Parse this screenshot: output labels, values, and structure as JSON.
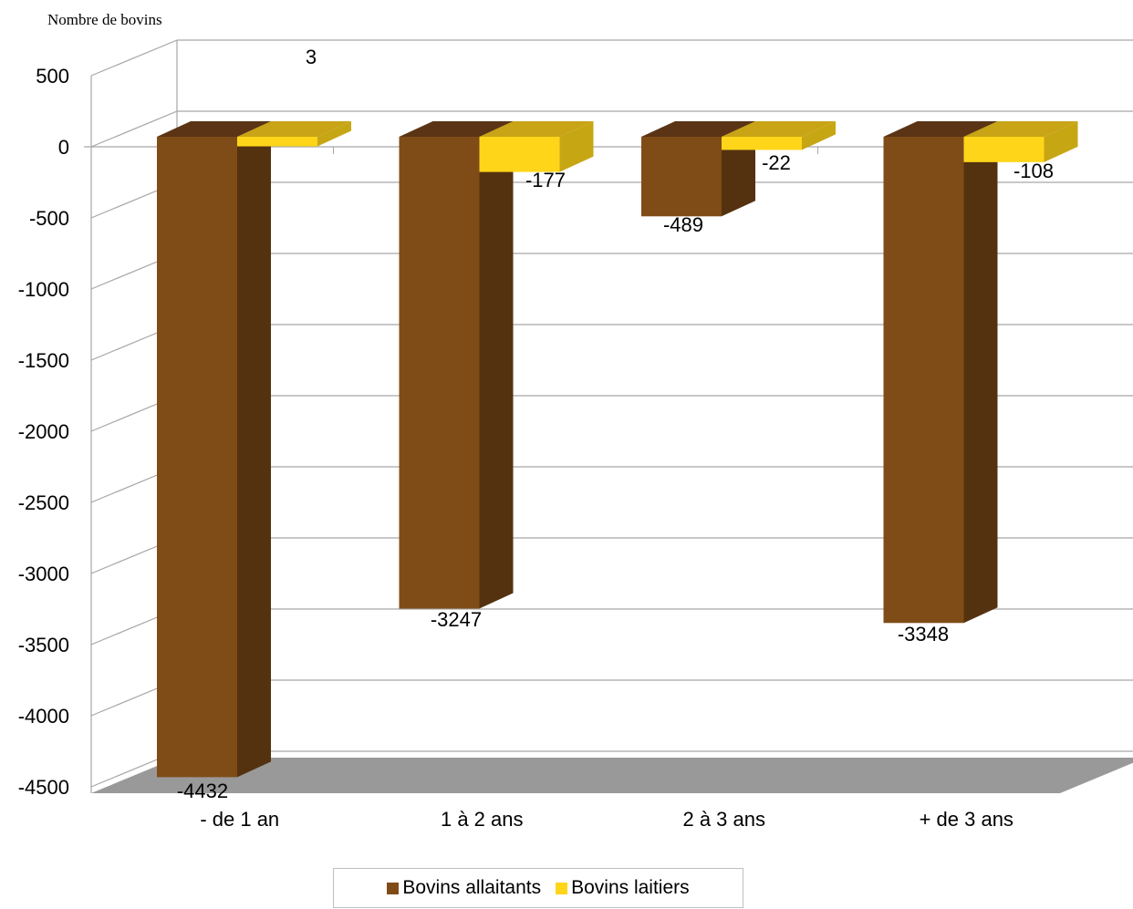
{
  "chart_data": {
    "type": "bar",
    "ylabel": "Nombre de bovins",
    "categories": [
      "- de 1 an",
      "1 à 2 ans",
      "2 à 3 ans",
      "+ de 3 ans"
    ],
    "series": [
      {
        "name": "Bovins allaitants",
        "values": [
          -4432,
          -3247,
          -489,
          -3348
        ],
        "color": "#7f4c17"
      },
      {
        "name": "Bovins laitiers",
        "values": [
          3,
          -177,
          -22,
          -108
        ],
        "color": "#ffd51a"
      }
    ],
    "data_labels": [
      [
        "-4432",
        "-3247",
        "-489",
        "-3348"
      ],
      [
        "3",
        "-177",
        "-22",
        "-108"
      ]
    ],
    "ylim": [
      -4500,
      500
    ],
    "yticks": [
      "500",
      "0",
      "-500",
      "-1000",
      "-1500",
      "-2000",
      "-2500",
      "-3000",
      "-3500",
      "-4000",
      "-4500"
    ],
    "grid": true,
    "legend_position": "bottom"
  }
}
